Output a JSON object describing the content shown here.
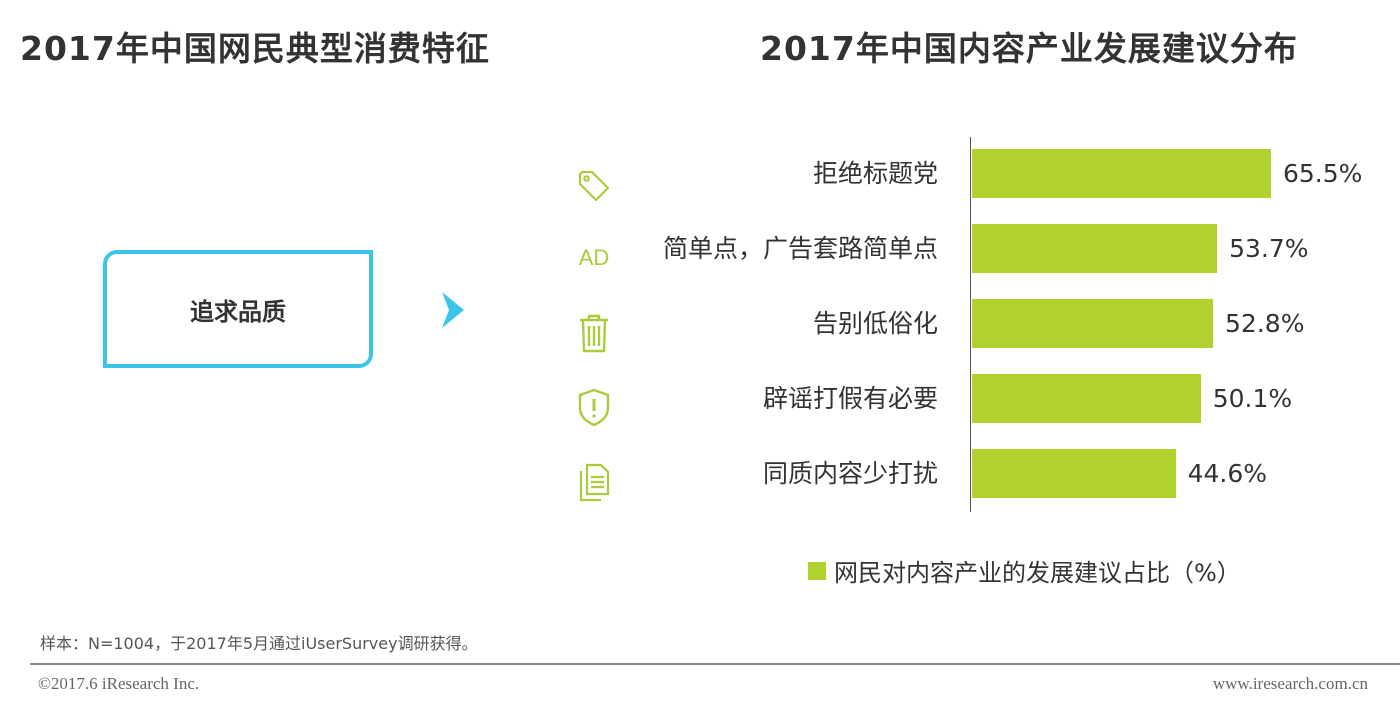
{
  "header": {
    "left_title": "2017年中国网民典型消费特征",
    "right_title": "2017年中国内容产业发展建议分布"
  },
  "card": {
    "label": "追求品质"
  },
  "icons": {
    "ad_text": "AD"
  },
  "colors": {
    "bar": "#b0d12f",
    "accent": "#3bc5ea",
    "icon": "#a8cc3a"
  },
  "icon_names": [
    "tag-icon",
    "ad-icon",
    "trash-icon",
    "shield-alert-icon",
    "document-icon"
  ],
  "chart_data": {
    "type": "bar",
    "orientation": "horizontal",
    "title": "2017年中国内容产业发展建议分布",
    "categories": [
      "拒绝标题党",
      "简单点，广告套路简单点",
      "告别低俗化",
      "辟谣打假有必要",
      "同质内容少打扰"
    ],
    "series": [
      {
        "name": "网民对内容产业的发展建议占比（%）",
        "values": [
          65.5,
          53.7,
          52.8,
          50.1,
          44.6
        ]
      }
    ],
    "value_labels": [
      "65.5%",
      "53.7%",
      "52.8%",
      "50.1%",
      "44.6%"
    ],
    "xlim": [
      0,
      100
    ],
    "grid": false,
    "legend_position": "bottom"
  },
  "footer": {
    "note": "样本：N=1004，于2017年5月通过iUserSurvey调研获得。",
    "copyright": "©2017.6 iResearch Inc.",
    "site": "www.iresearch.com.cn"
  }
}
